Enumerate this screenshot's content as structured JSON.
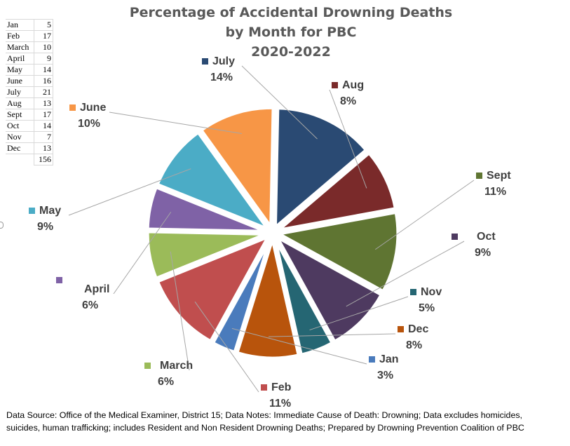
{
  "chart_data": {
    "type": "pie",
    "title_lines": [
      "Percentage of Accidental Drowning Deaths",
      "by Month for PBC",
      "2020-2022"
    ],
    "slices": [
      {
        "label": "July",
        "value": 21,
        "percent": "14%",
        "color": "#2a4a73"
      },
      {
        "label": "Aug",
        "value": 13,
        "percent": "8%",
        "color": "#7a2a2a"
      },
      {
        "label": "Sept",
        "value": 17,
        "percent": "11%",
        "color": "#5f7532"
      },
      {
        "label": "Oct",
        "value": 14,
        "percent": "9%",
        "color": "#4e3a60"
      },
      {
        "label": "Nov",
        "value": 7,
        "percent": "5%",
        "color": "#256673"
      },
      {
        "label": "Dec",
        "value": 13,
        "percent": "8%",
        "color": "#b8540c"
      },
      {
        "label": "Jan",
        "value": 5,
        "percent": "3%",
        "color": "#4a7bbc"
      },
      {
        "label": "Feb",
        "value": 17,
        "percent": "11%",
        "color": "#c04e4e"
      },
      {
        "label": "March",
        "value": 10,
        "percent": "6%",
        "color": "#9bbb59"
      },
      {
        "label": "April",
        "value": 9,
        "percent": "6%",
        "color": "#7f62a6"
      },
      {
        "label": "May",
        "value": 14,
        "percent": "9%",
        "color": "#4bacc6"
      },
      {
        "label": "June",
        "value": 16,
        "percent": "10%",
        "color": "#f79646"
      }
    ],
    "table": {
      "rows": [
        {
          "month": "Jan",
          "count": "5"
        },
        {
          "month": "Feb",
          "count": "17"
        },
        {
          "month": "March",
          "count": "10"
        },
        {
          "month": "April",
          "count": "9"
        },
        {
          "month": "May",
          "count": "14"
        },
        {
          "month": "June",
          "count": "16"
        },
        {
          "month": "July",
          "count": "21"
        },
        {
          "month": "Aug",
          "count": "13"
        },
        {
          "month": "Sept",
          "count": "17"
        },
        {
          "month": "Oct",
          "count": "14"
        },
        {
          "month": "Nov",
          "count": "7"
        },
        {
          "month": "Dec",
          "count": "13"
        }
      ],
      "total": "156"
    },
    "legend": "per-slice-labels"
  },
  "footer": {
    "line1": "Data Source: Office of the Medical Examiner, District 15; Data Notes: Immediate Cause of Death: Drowning; Data excludes homicides,",
    "line2": "suicides, human trafficking; includes Resident and Non Resident Drowning Deaths; Prepared by Drowning Prevention Coalition of PBC"
  }
}
